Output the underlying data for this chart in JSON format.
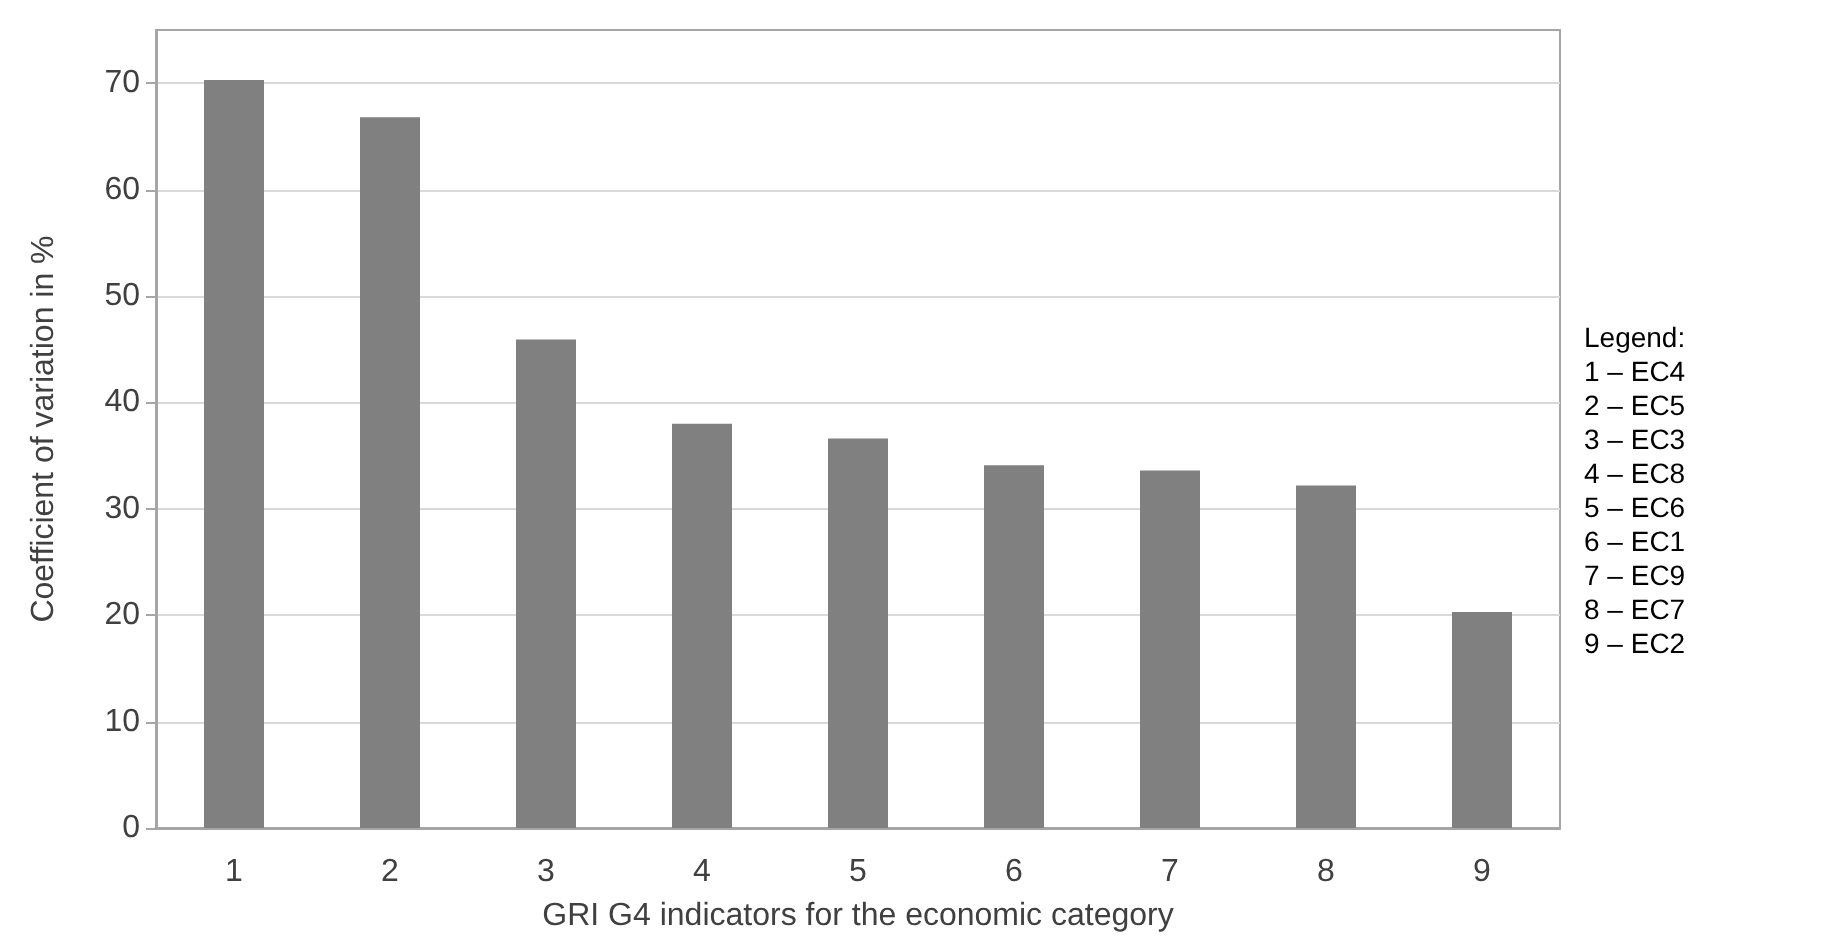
{
  "chart_data": {
    "type": "bar",
    "xlabel": "GRI G4 indicators for the economic category",
    "ylabel": "Coefficient of variation in %",
    "categories": [
      "1",
      "2",
      "3",
      "4",
      "5",
      "6",
      "7",
      "8",
      "9"
    ],
    "values": [
      70.3,
      66.8,
      45.9,
      38.0,
      36.6,
      34.1,
      33.6,
      32.2,
      20.3
    ],
    "color": "#808080",
    "ylim": [
      0,
      75
    ],
    "yticks": [
      0,
      10,
      20,
      30,
      40,
      50,
      60,
      70
    ],
    "grid": "y",
    "annotations": [
      "Legend:\n1 – EC4\n2 – EC5\n3 – EC3\n4 – EC8\n5 – EC6\n6 – EC1\n7 – EC9\n8 – EC7\n9 – EC2"
    ]
  }
}
